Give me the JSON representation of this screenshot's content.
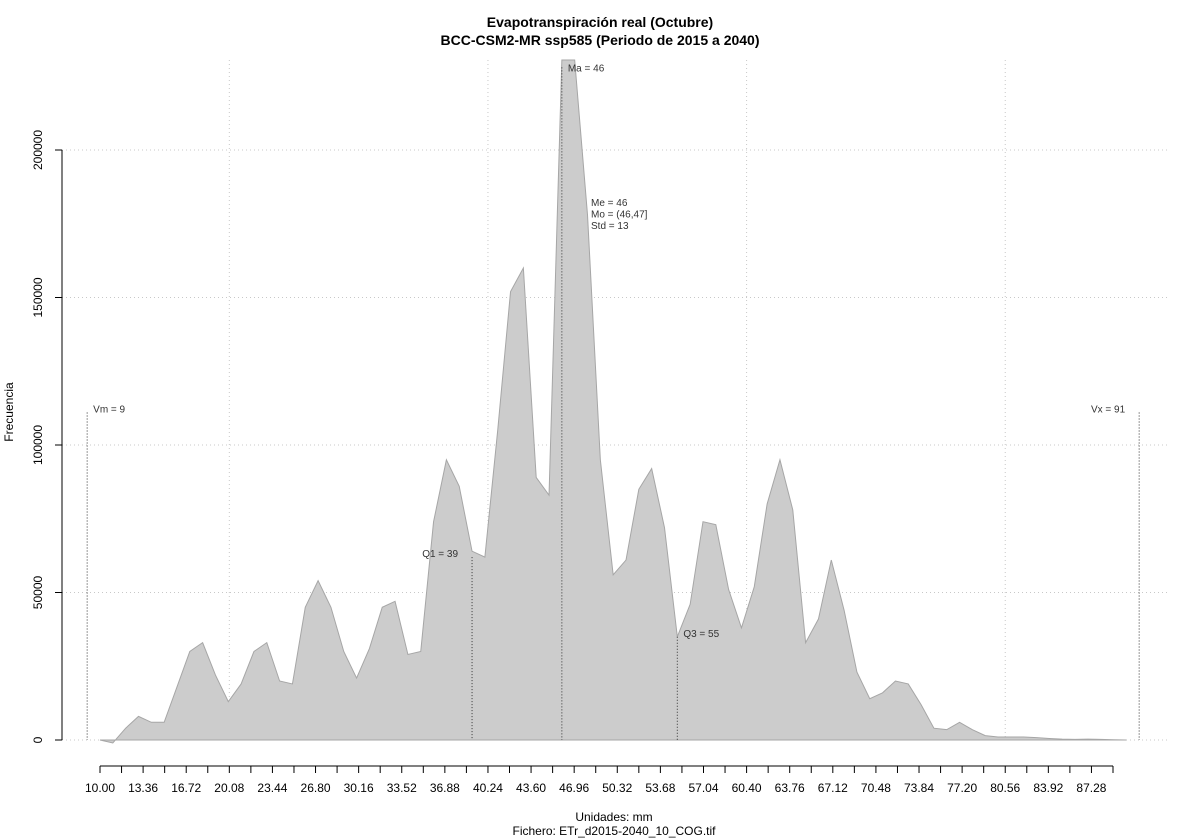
{
  "chart_data": {
    "type": "area",
    "title": "Evapotranspiración real (Octubre)",
    "subtitle": "BCC-CSM2-MR ssp585 (Periodo de 2015 a 2040)",
    "xlabel": "Unidades: mm",
    "file_label": "Fichero: ETr_d2015-2040_10_COG.tif",
    "ylabel": "Frecuencia",
    "xlim": [
      10,
      91
    ],
    "ylim": [
      0,
      230000
    ],
    "fill_color": "#cccccc",
    "line_color": "#a6a6a6",
    "grid": true,
    "x_ticks": [
      10.0,
      11.68,
      13.36,
      15.04,
      16.72,
      18.4,
      20.08,
      21.76,
      23.44,
      25.12,
      26.8,
      28.48,
      30.16,
      31.84,
      33.52,
      35.2,
      36.88,
      38.56,
      40.24,
      41.92,
      43.6,
      45.28,
      46.96,
      48.64,
      50.32,
      52.0,
      53.68,
      55.36,
      57.04,
      58.72,
      60.4,
      62.08,
      63.76,
      65.44,
      67.12,
      68.8,
      70.48,
      72.16,
      73.84,
      75.52,
      77.2,
      78.88,
      80.56,
      82.24,
      83.92,
      85.6,
      87.28,
      88.96
    ],
    "x_tick_labels": [
      "10.00",
      "13.36",
      "16.72",
      "20.08",
      "23.44",
      "26.80",
      "30.16",
      "33.52",
      "36.88",
      "40.24",
      "43.60",
      "46.96",
      "50.32",
      "53.68",
      "57.04",
      "60.40",
      "63.76",
      "67.12",
      "70.48",
      "73.84",
      "77.20",
      "80.56",
      "83.92",
      "87.28"
    ],
    "y_ticks": [
      0,
      50000,
      100000,
      150000,
      200000
    ],
    "y_tick_labels": [
      "0",
      "50000",
      "100000",
      "150000",
      "200000"
    ],
    "x": [
      10,
      11,
      12,
      13,
      14,
      15,
      16,
      17,
      18,
      19,
      20,
      21,
      22,
      23,
      24,
      25,
      26,
      27,
      28,
      29,
      30,
      31,
      32,
      33,
      34,
      35,
      36,
      37,
      38,
      39,
      40,
      41,
      42,
      43,
      44,
      45,
      46,
      47,
      48,
      49,
      50,
      51,
      52,
      53,
      54,
      55,
      56,
      57,
      58,
      59,
      60,
      61,
      62,
      63,
      64,
      65,
      66,
      67,
      68,
      69,
      70,
      71,
      72,
      73,
      74,
      75,
      76,
      77,
      78,
      79,
      80,
      81,
      82,
      83,
      84,
      85,
      86,
      87,
      88,
      89,
      90
    ],
    "y": [
      0,
      -1000,
      4000,
      8000,
      6000,
      6000,
      18000,
      30000,
      33000,
      22000,
      13000,
      19000,
      30000,
      33000,
      20000,
      19000,
      45000,
      54000,
      45000,
      30000,
      21000,
      31000,
      45000,
      47000,
      29000,
      30000,
      74000,
      95000,
      86000,
      64000,
      62000,
      105000,
      152000,
      160000,
      89000,
      83000,
      232000,
      232000,
      178000,
      95000,
      56000,
      61000,
      85000,
      92000,
      72000,
      35000,
      46000,
      74000,
      73000,
      51000,
      38000,
      52000,
      80000,
      95000,
      78000,
      33000,
      41000,
      61000,
      44000,
      23000,
      14000,
      16000,
      20000,
      19000,
      12000,
      4000,
      3500,
      6000,
      3500,
      1500,
      1000,
      1000,
      1000,
      800,
      500,
      300,
      200,
      300,
      200,
      100,
      0
    ],
    "markers": [
      {
        "x": 9,
        "y_top": 111000,
        "label": "Vm = 9",
        "label_side": "right"
      },
      {
        "x": 39,
        "y_top": 62000,
        "label": "Q1 = 39",
        "label_side": "left"
      },
      {
        "x": 46,
        "y_top": 228000,
        "label": "Ma = 46",
        "label_side": "right"
      },
      {
        "x": 55,
        "y_top": 35000,
        "label": "Q3 = 55",
        "label_side": "right"
      },
      {
        "x": 91,
        "y_top": 111000,
        "label": "Vx = 91",
        "label_side": "left"
      }
    ],
    "stats_text": [
      "Me = 46",
      "Mo = (46,47]",
      "Std = 13"
    ]
  }
}
